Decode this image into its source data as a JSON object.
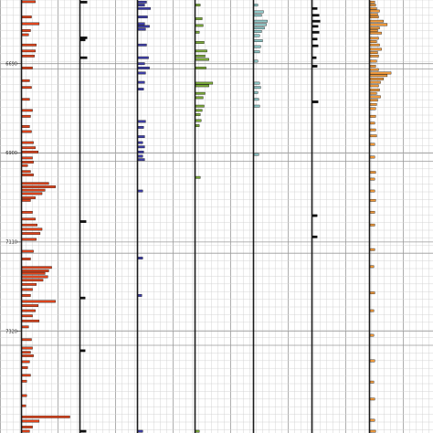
{
  "chart_data": {
    "type": "bar",
    "orientation": "horizontal-strip-log",
    "y_axis": {
      "label": "",
      "range": [
        6540,
        7560
      ],
      "reversed": true,
      "tick_labels": [
        {
          "value": 6690,
          "text": "6690"
        },
        {
          "value": 6900,
          "text": "6900"
        },
        {
          "value": 7110,
          "text": "7110"
        },
        {
          "value": 7320,
          "text": "7320"
        }
      ]
    },
    "grid": true,
    "tracks": [
      {
        "color": "#e0441c",
        "x_range": [
          0,
          60
        ],
        "bars": [
          {
            "y": 6544,
            "v": 14
          },
          {
            "y": 6580,
            "v": 10
          },
          {
            "y": 6596,
            "v": 18
          },
          {
            "y": 6612,
            "v": 9
          },
          {
            "y": 6622,
            "v": 7
          },
          {
            "y": 6646,
            "v": 15
          },
          {
            "y": 6660,
            "v": 14
          },
          {
            "y": 6672,
            "v": 13
          },
          {
            "y": 6700,
            "v": 11
          },
          {
            "y": 6730,
            "v": 8
          },
          {
            "y": 6746,
            "v": 10
          },
          {
            "y": 6774,
            "v": 8
          },
          {
            "y": 6800,
            "v": 11
          },
          {
            "y": 6814,
            "v": 9
          },
          {
            "y": 6838,
            "v": 8
          },
          {
            "y": 6850,
            "v": 10
          },
          {
            "y": 6876,
            "v": 12
          },
          {
            "y": 6888,
            "v": 14
          },
          {
            "y": 6898,
            "v": 17
          },
          {
            "y": 6912,
            "v": 11
          },
          {
            "y": 6922,
            "v": 12
          },
          {
            "y": 6930,
            "v": 6
          },
          {
            "y": 6944,
            "v": 9
          },
          {
            "y": 6952,
            "v": 12
          },
          {
            "y": 6972,
            "v": 28
          },
          {
            "y": 6980,
            "v": 35
          },
          {
            "y": 6988,
            "v": 24
          },
          {
            "y": 6996,
            "v": 21
          },
          {
            "y": 7006,
            "v": 14
          },
          {
            "y": 7012,
            "v": 9
          },
          {
            "y": 7040,
            "v": 11
          },
          {
            "y": 7056,
            "v": 14
          },
          {
            "y": 7070,
            "v": 16
          },
          {
            "y": 7080,
            "v": 21
          },
          {
            "y": 7090,
            "v": 19
          },
          {
            "y": 7104,
            "v": 15
          },
          {
            "y": 7132,
            "v": 12
          },
          {
            "y": 7150,
            "v": 9
          },
          {
            "y": 7170,
            "v": 31
          },
          {
            "y": 7178,
            "v": 28
          },
          {
            "y": 7184,
            "v": 24
          },
          {
            "y": 7192,
            "v": 27
          },
          {
            "y": 7200,
            "v": 22
          },
          {
            "y": 7210,
            "v": 15
          },
          {
            "y": 7222,
            "v": 11
          },
          {
            "y": 7236,
            "v": 9
          },
          {
            "y": 7250,
            "v": 35
          },
          {
            "y": 7260,
            "v": 17
          },
          {
            "y": 7272,
            "v": 14
          },
          {
            "y": 7284,
            "v": 11
          },
          {
            "y": 7296,
            "v": 18
          },
          {
            "y": 7310,
            "v": 7
          },
          {
            "y": 7340,
            "v": 10
          },
          {
            "y": 7360,
            "v": 11
          },
          {
            "y": 7370,
            "v": 9
          },
          {
            "y": 7378,
            "v": 12
          },
          {
            "y": 7392,
            "v": 8
          },
          {
            "y": 7406,
            "v": 6
          },
          {
            "y": 7424,
            "v": 9
          },
          {
            "y": 7438,
            "v": 5
          },
          {
            "y": 7472,
            "v": 5
          },
          {
            "y": 7496,
            "v": 4
          },
          {
            "y": 7522,
            "v": 50
          },
          {
            "y": 7532,
            "v": 18
          },
          {
            "y": 7546,
            "v": 11
          },
          {
            "y": 7556,
            "v": 8
          }
        ]
      },
      {
        "color": "#111111",
        "x_range": [
          0,
          60
        ],
        "bars": [
          {
            "y": 6545,
            "v": 7
          },
          {
            "y": 6629,
            "v": 7
          },
          {
            "y": 6634,
            "v": 5
          },
          {
            "y": 6676,
            "v": 7
          },
          {
            "y": 7062,
            "v": 6
          },
          {
            "y": 7242,
            "v": 5
          },
          {
            "y": 7366,
            "v": 5
          },
          {
            "y": 7556,
            "v": 6
          }
        ]
      },
      {
        "color": "#3f3fa8",
        "x_range": [
          0,
          60
        ],
        "bars": [
          {
            "y": 6545,
            "v": 9
          },
          {
            "y": 6552,
            "v": 7
          },
          {
            "y": 6560,
            "v": 13
          },
          {
            "y": 6580,
            "v": 10
          },
          {
            "y": 6596,
            "v": 7
          },
          {
            "y": 6602,
            "v": 12
          },
          {
            "y": 6609,
            "v": 8
          },
          {
            "y": 6646,
            "v": 9
          },
          {
            "y": 6676,
            "v": 11
          },
          {
            "y": 6690,
            "v": 7
          },
          {
            "y": 6700,
            "v": 12
          },
          {
            "y": 6712,
            "v": 8
          },
          {
            "y": 6734,
            "v": 7
          },
          {
            "y": 6750,
            "v": 6
          },
          {
            "y": 6826,
            "v": 8
          },
          {
            "y": 6840,
            "v": 6
          },
          {
            "y": 6862,
            "v": 7
          },
          {
            "y": 6876,
            "v": 5
          },
          {
            "y": 6886,
            "v": 7
          },
          {
            "y": 6898,
            "v": 6
          },
          {
            "y": 6908,
            "v": 5
          },
          {
            "y": 6916,
            "v": 7
          },
          {
            "y": 6990,
            "v": 5
          },
          {
            "y": 7148,
            "v": 5
          },
          {
            "y": 7236,
            "v": 4
          },
          {
            "y": 7556,
            "v": 5
          }
        ]
      },
      {
        "color": "#7aa83a",
        "x_range": [
          0,
          60
        ],
        "bars": [
          {
            "y": 6552,
            "v": 5
          },
          {
            "y": 6584,
            "v": 7
          },
          {
            "y": 6600,
            "v": 8
          },
          {
            "y": 6616,
            "v": 4
          },
          {
            "y": 6640,
            "v": 9
          },
          {
            "y": 6660,
            "v": 12
          },
          {
            "y": 6672,
            "v": 10
          },
          {
            "y": 6680,
            "v": 14
          },
          {
            "y": 6700,
            "v": 11
          },
          {
            "y": 6736,
            "v": 18
          },
          {
            "y": 6742,
            "v": 14
          },
          {
            "y": 6760,
            "v": 10
          },
          {
            "y": 6770,
            "v": 8
          },
          {
            "y": 6790,
            "v": 9
          },
          {
            "y": 6800,
            "v": 7
          },
          {
            "y": 6810,
            "v": 5
          },
          {
            "y": 6824,
            "v": 6
          },
          {
            "y": 6836,
            "v": 4
          },
          {
            "y": 6958,
            "v": 5
          },
          {
            "y": 7556,
            "v": 4
          }
        ]
      },
      {
        "color": "#8ec6c6",
        "x_range": [
          0,
          60
        ],
        "bars": [
          {
            "y": 6552,
            "v": 4
          },
          {
            "y": 6568,
            "v": 10
          },
          {
            "y": 6576,
            "v": 8
          },
          {
            "y": 6590,
            "v": 14
          },
          {
            "y": 6598,
            "v": 13
          },
          {
            "y": 6606,
            "v": 11
          },
          {
            "y": 6614,
            "v": 8
          },
          {
            "y": 6624,
            "v": 6
          },
          {
            "y": 6636,
            "v": 9
          },
          {
            "y": 6650,
            "v": 7
          },
          {
            "y": 6662,
            "v": 6
          },
          {
            "y": 6684,
            "v": 4
          },
          {
            "y": 6736,
            "v": 6
          },
          {
            "y": 6746,
            "v": 7
          },
          {
            "y": 6758,
            "v": 4
          },
          {
            "y": 6774,
            "v": 5
          },
          {
            "y": 6790,
            "v": 6
          },
          {
            "y": 6904,
            "v": 5
          }
        ]
      },
      {
        "color": "#111111",
        "x_range": [
          0,
          60
        ],
        "bars": [
          {
            "y": 6560,
            "v": 5
          },
          {
            "y": 6576,
            "v": 7
          },
          {
            "y": 6590,
            "v": 8
          },
          {
            "y": 6602,
            "v": 6
          },
          {
            "y": 6616,
            "v": 7
          },
          {
            "y": 6632,
            "v": 5
          },
          {
            "y": 6648,
            "v": 6
          },
          {
            "y": 6676,
            "v": 4
          },
          {
            "y": 6696,
            "v": 5
          },
          {
            "y": 6780,
            "v": 6
          },
          {
            "y": 7048,
            "v": 5
          },
          {
            "y": 7098,
            "v": 5
          }
        ]
      },
      {
        "color": "#f09a3c",
        "x_range": [
          0,
          60
        ],
        "bars": [
          {
            "y": 6545,
            "v": 5
          },
          {
            "y": 6552,
            "v": 6
          },
          {
            "y": 6560,
            "v": 7
          },
          {
            "y": 6566,
            "v": 10
          },
          {
            "y": 6574,
            "v": 8
          },
          {
            "y": 6580,
            "v": 9
          },
          {
            "y": 6590,
            "v": 14
          },
          {
            "y": 6598,
            "v": 18
          },
          {
            "y": 6606,
            "v": 10
          },
          {
            "y": 6612,
            "v": 8
          },
          {
            "y": 6618,
            "v": 12
          },
          {
            "y": 6630,
            "v": 9
          },
          {
            "y": 6638,
            "v": 7
          },
          {
            "y": 6646,
            "v": 10
          },
          {
            "y": 6656,
            "v": 12
          },
          {
            "y": 6664,
            "v": 8
          },
          {
            "y": 6672,
            "v": 9
          },
          {
            "y": 6684,
            "v": 7
          },
          {
            "y": 6696,
            "v": 6
          },
          {
            "y": 6704,
            "v": 9
          },
          {
            "y": 6712,
            "v": 22
          },
          {
            "y": 6718,
            "v": 18
          },
          {
            "y": 6726,
            "v": 14
          },
          {
            "y": 6734,
            "v": 11
          },
          {
            "y": 6742,
            "v": 9
          },
          {
            "y": 6752,
            "v": 10
          },
          {
            "y": 6760,
            "v": 7
          },
          {
            "y": 6768,
            "v": 11
          },
          {
            "y": 6776,
            "v": 8
          },
          {
            "y": 6786,
            "v": 7
          },
          {
            "y": 6796,
            "v": 6
          },
          {
            "y": 6814,
            "v": 6
          },
          {
            "y": 6830,
            "v": 5
          },
          {
            "y": 6846,
            "v": 6
          },
          {
            "y": 6860,
            "v": 7
          },
          {
            "y": 6880,
            "v": 5
          },
          {
            "y": 6910,
            "v": 5
          },
          {
            "y": 6946,
            "v": 6
          },
          {
            "y": 6962,
            "v": 5
          },
          {
            "y": 6990,
            "v": 5
          },
          {
            "y": 7012,
            "v": 6
          },
          {
            "y": 7040,
            "v": 5
          },
          {
            "y": 7070,
            "v": 5
          },
          {
            "y": 7128,
            "v": 5
          },
          {
            "y": 7168,
            "v": 4
          },
          {
            "y": 7230,
            "v": 5
          },
          {
            "y": 7272,
            "v": 4
          },
          {
            "y": 7330,
            "v": 4
          },
          {
            "y": 7390,
            "v": 5
          },
          {
            "y": 7440,
            "v": 4
          },
          {
            "y": 7480,
            "v": 5
          },
          {
            "y": 7530,
            "v": 5
          },
          {
            "y": 7556,
            "v": 6
          }
        ]
      }
    ]
  }
}
